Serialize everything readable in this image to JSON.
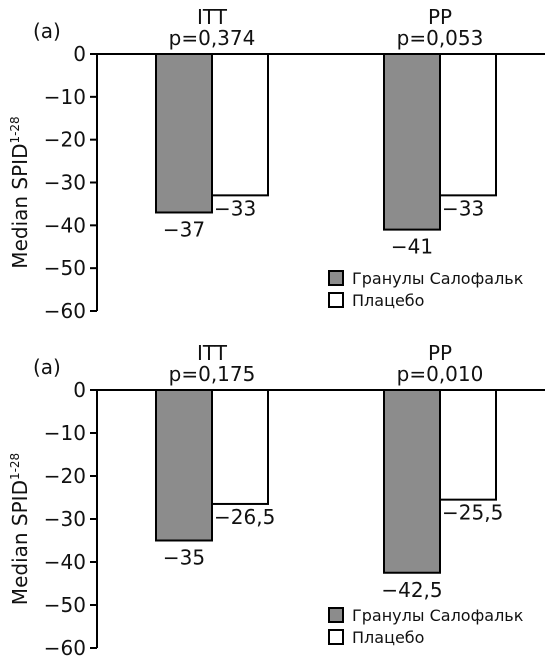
{
  "chart_data": [
    {
      "type": "bar",
      "panel_label": "(a)",
      "ylabel": "Median SPID",
      "ylabel_superscript": "1-28",
      "ylim": [
        -60,
        0
      ],
      "yticks": [
        0,
        -10,
        -20,
        -30,
        -40,
        -50,
        -60
      ],
      "ytick_labels": [
        "0",
        "−10",
        "−20",
        "−30",
        "−40",
        "−50",
        "−60"
      ],
      "grid": false,
      "categories": [
        "ITT",
        "PP"
      ],
      "p_values": [
        "p=0,374",
        "p=0,053"
      ],
      "series": [
        {
          "name": "Гранулы Салофальк",
          "color": "#8c8c8c",
          "values": [
            -37,
            -41
          ],
          "labels": [
            "−37",
            "−41"
          ]
        },
        {
          "name": "Плацебо",
          "color": "#ffffff",
          "values": [
            -33,
            -33
          ],
          "labels": [
            "−33",
            "−33"
          ]
        }
      ],
      "legend_position": "bottom-right"
    },
    {
      "type": "bar",
      "panel_label": "(a)",
      "ylabel": "Median SPID",
      "ylabel_superscript": "1-28",
      "ylim": [
        -60,
        0
      ],
      "yticks": [
        0,
        -10,
        -20,
        -30,
        -40,
        -50,
        -60
      ],
      "ytick_labels": [
        "0",
        "−10",
        "−20",
        "−30",
        "−40",
        "−50",
        "−60"
      ],
      "grid": false,
      "categories": [
        "ITT",
        "PP"
      ],
      "p_values": [
        "p=0,175",
        "p=0,010"
      ],
      "series": [
        {
          "name": "Гранулы Салофальк",
          "color": "#8c8c8c",
          "values": [
            -35,
            -42.5
          ],
          "labels": [
            "−35",
            "−42,5"
          ]
        },
        {
          "name": "Плацебо",
          "color": "#ffffff",
          "values": [
            -26.5,
            -25.5
          ],
          "labels": [
            "−26,5",
            "−25,5"
          ]
        }
      ],
      "legend_position": "bottom-right"
    }
  ]
}
